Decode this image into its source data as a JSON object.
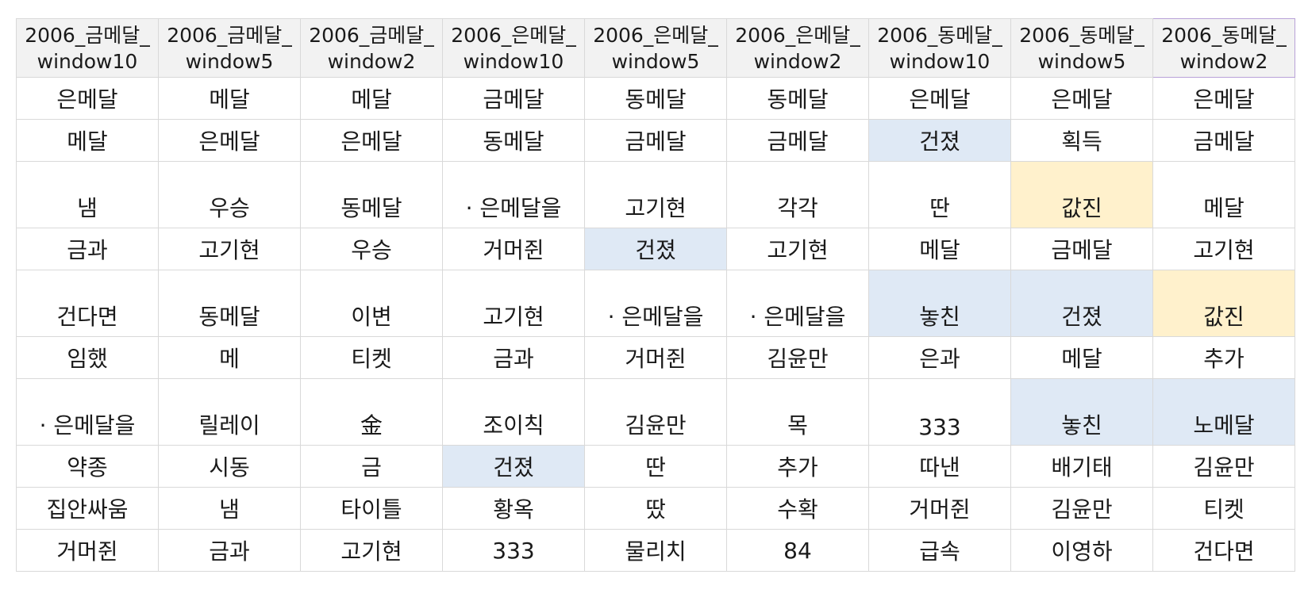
{
  "columns": [
    "2006_금메달_ window10",
    "2006_금메달_ window5",
    "2006_금메달_ window2",
    "2006_은메달_ window10",
    "2006_은메달_ window5",
    "2006_은메달_ window2",
    "2006_동메달_ window10",
    "2006_동메달_ window5",
    "2006_동메달_ window2"
  ],
  "active_column": 8,
  "highlight_colors": {
    "blue": "#dfe9f5",
    "yellow": "#fff1cc",
    "header": "#f2f2f2"
  },
  "rows": [
    {
      "tall": false,
      "cells": [
        "은메달",
        "메달",
        "메달",
        "금메달",
        "동메달",
        "동메달",
        "은메달",
        "은메달",
        "은메달"
      ],
      "highlights": {}
    },
    {
      "tall": false,
      "cells": [
        "메달",
        "은메달",
        "은메달",
        "동메달",
        "금메달",
        "금메달",
        "건졌",
        "획득",
        "금메달"
      ],
      "highlights": {
        "6": "blue"
      }
    },
    {
      "tall": true,
      "cells": [
        "냄",
        "우승",
        "동메달",
        "· 은메달을",
        "고기현",
        "각각",
        "딴",
        "값진",
        "메달"
      ],
      "highlights": {
        "7": "yellow"
      }
    },
    {
      "tall": false,
      "cells": [
        "금과",
        "고기현",
        "우승",
        "거머쥔",
        "건졌",
        "고기현",
        "메달",
        "금메달",
        "고기현"
      ],
      "highlights": {
        "4": "blue"
      }
    },
    {
      "tall": true,
      "cells": [
        "건다면",
        "동메달",
        "이변",
        "고기현",
        "· 은메달을",
        "· 은메달을",
        "놓친",
        "건졌",
        "값진"
      ],
      "highlights": {
        "6": "blue",
        "7": "blue",
        "8": "yellow"
      }
    },
    {
      "tall": false,
      "cells": [
        "임했",
        "메",
        "티켓",
        "금과",
        "거머쥔",
        "김윤만",
        "은과",
        "메달",
        "추가"
      ],
      "highlights": {}
    },
    {
      "tall": true,
      "cells": [
        "· 은메달을",
        "릴레이",
        "金",
        "조이칙",
        "김윤만",
        "목",
        "333",
        "놓친",
        "노메달"
      ],
      "highlights": {
        "7": "blue",
        "8": "blue"
      }
    },
    {
      "tall": false,
      "cells": [
        "약종",
        "시동",
        "금",
        "건졌",
        "딴",
        "추가",
        "따낸",
        "배기태",
        "김윤만"
      ],
      "highlights": {
        "3": "blue"
      }
    },
    {
      "tall": false,
      "cells": [
        "집안싸움",
        "냄",
        "타이틀",
        "황옥",
        "땄",
        "수확",
        "거머쥔",
        "김윤만",
        "티켓"
      ],
      "highlights": {}
    },
    {
      "tall": false,
      "cells": [
        "거머쥔",
        "금과",
        "고기현",
        "333",
        "물리치",
        "84",
        "급속",
        "이영하",
        "건다면"
      ],
      "highlights": {}
    }
  ]
}
